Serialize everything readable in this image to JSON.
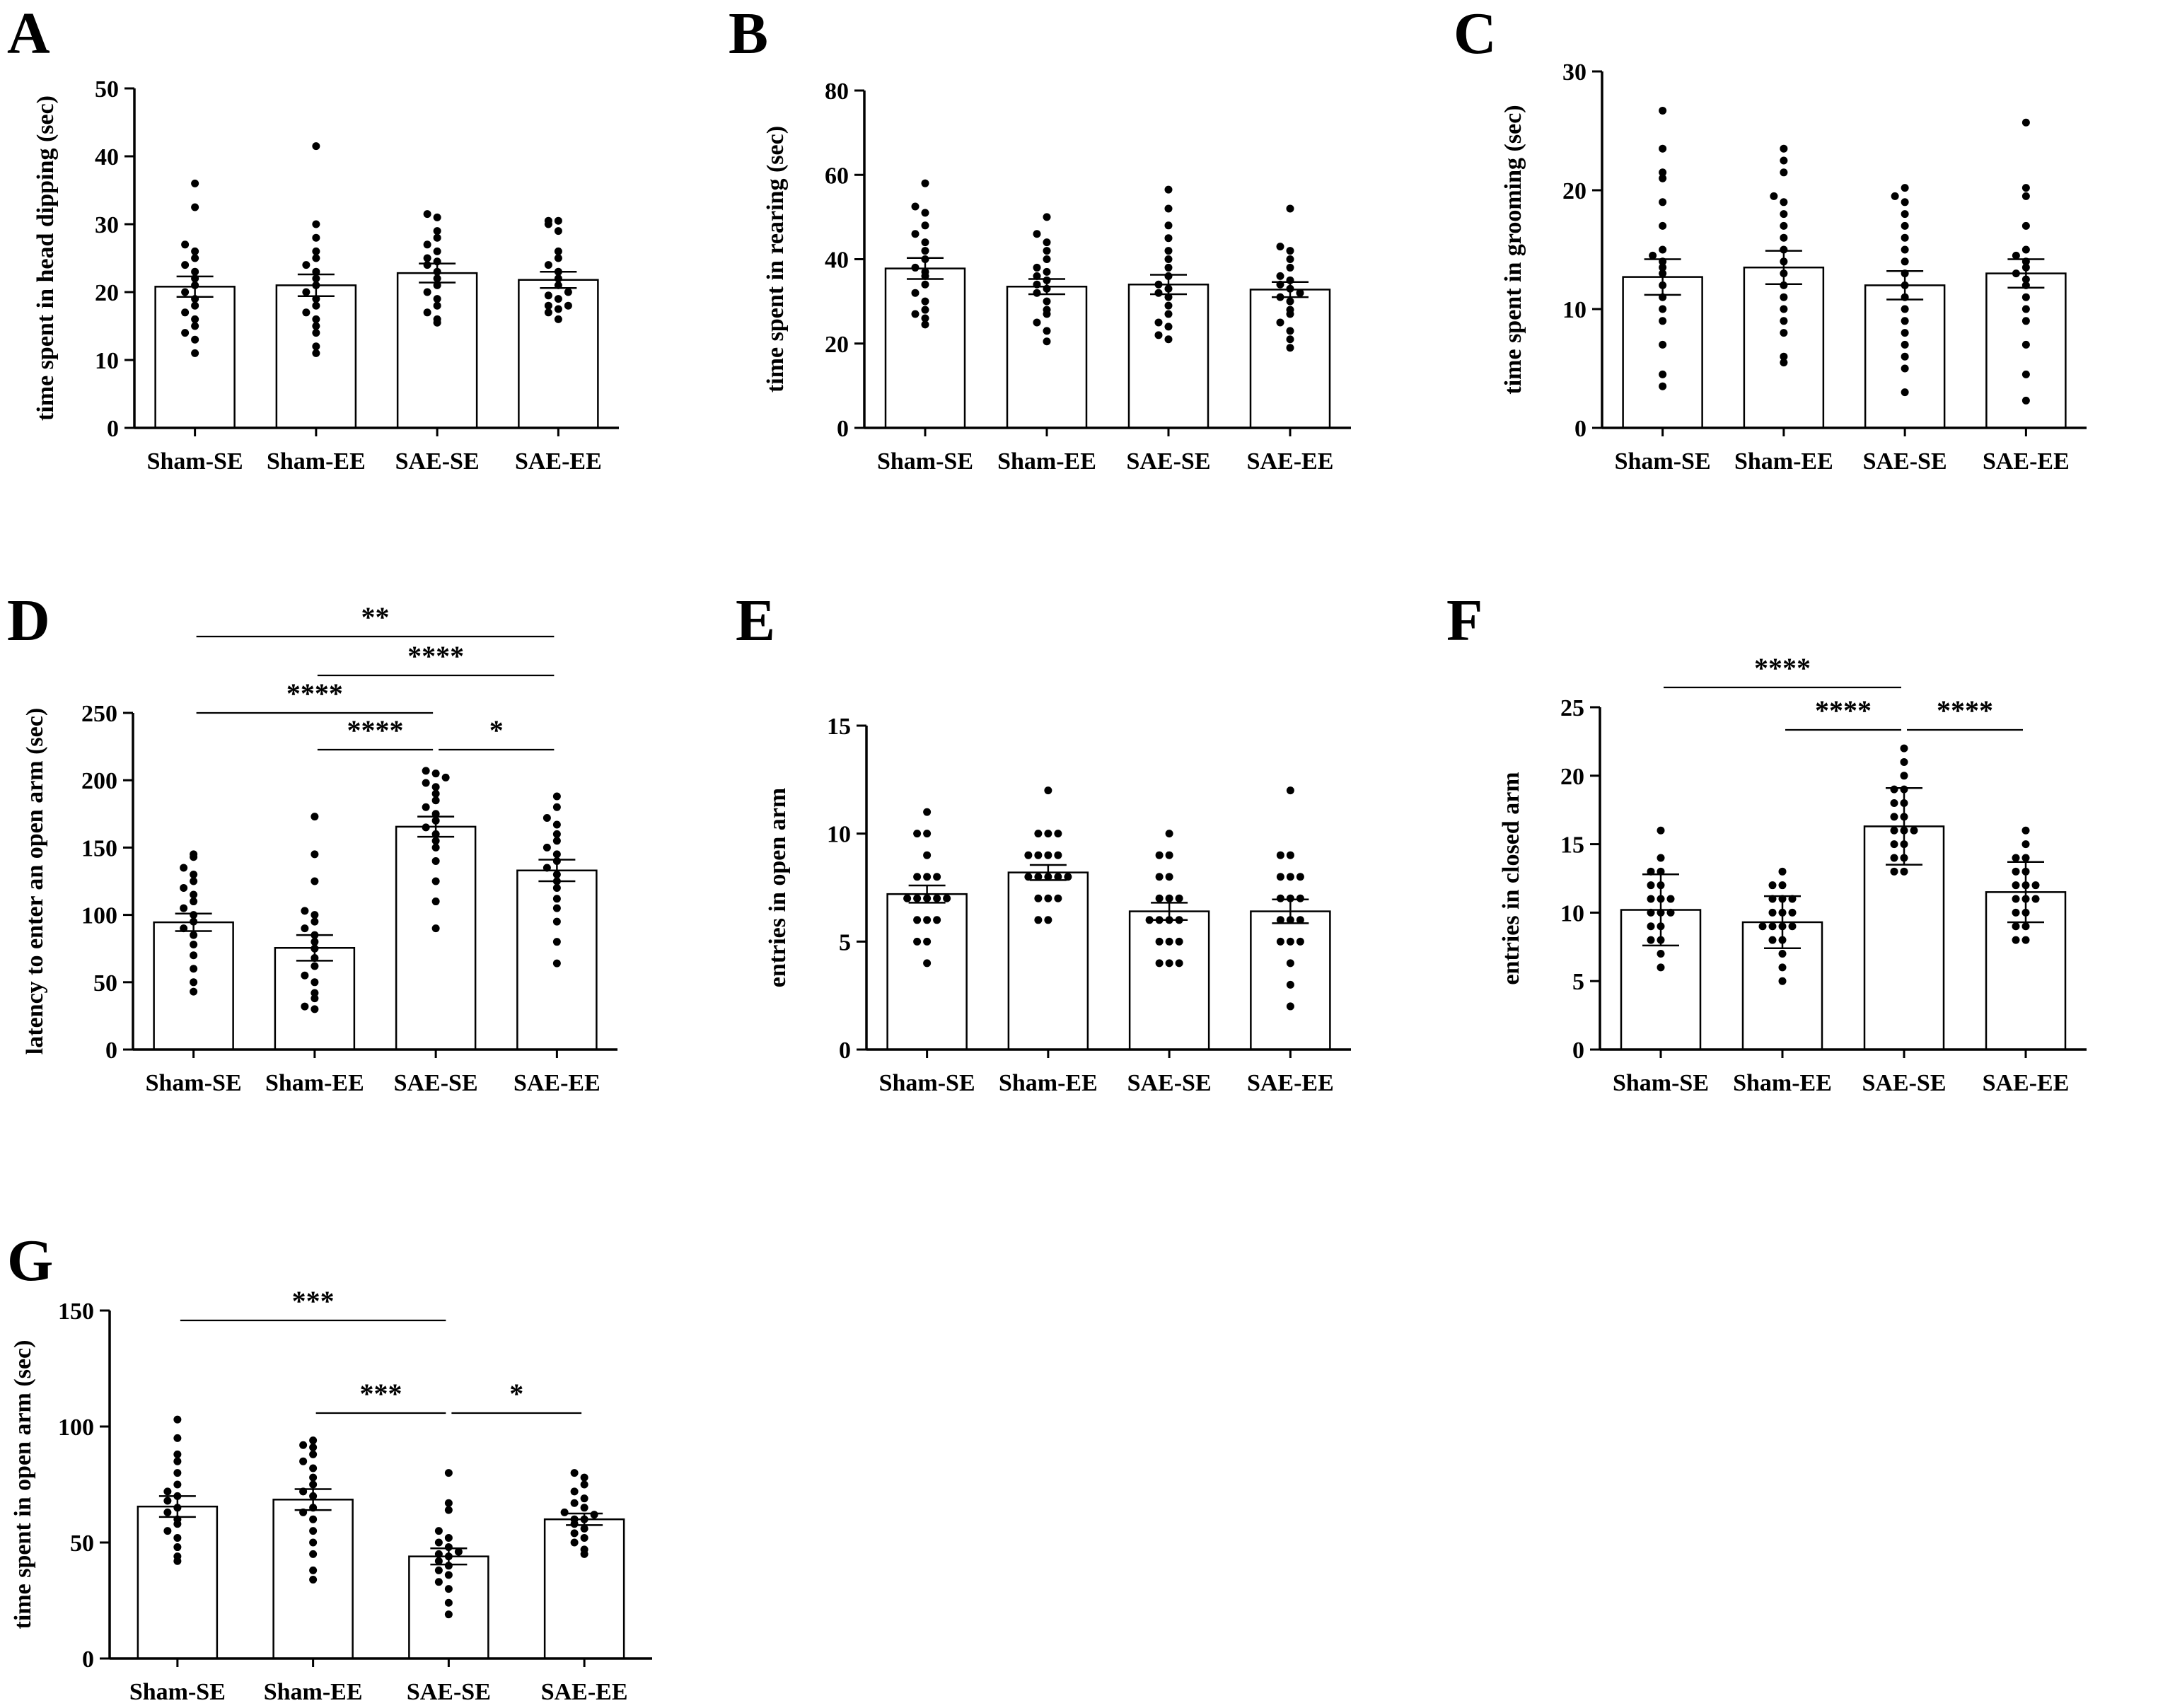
{
  "chart_data": [
    {
      "panel": "A",
      "type": "bar",
      "categories": [
        "Sham-SE",
        "Sham-EE",
        "SAE-SE",
        "SAE-EE"
      ],
      "ylabel": "time spent in head dipping (sec)",
      "ylim": [
        0,
        50
      ],
      "yticks": [
        0,
        10,
        20,
        30,
        40,
        50
      ],
      "values": [
        20.8,
        21.0,
        22.8,
        21.8
      ],
      "sem": [
        1.5,
        1.6,
        1.4,
        1.2
      ],
      "points": [
        [
          11,
          13,
          14,
          15,
          16,
          17,
          18,
          19,
          20,
          21,
          22,
          23,
          24,
          25,
          26,
          27,
          32.5,
          36
        ],
        [
          11,
          12,
          14,
          15,
          16,
          17,
          18,
          19,
          20,
          21,
          22,
          23,
          24,
          25,
          26,
          28,
          30,
          41.5
        ],
        [
          15.5,
          16,
          17,
          18,
          19,
          20,
          21,
          22,
          23,
          24,
          24.5,
          25,
          26,
          27,
          28,
          29,
          31,
          31.5
        ],
        [
          16,
          17,
          17.5,
          18,
          18,
          19,
          19.5,
          20,
          21,
          22,
          23,
          24,
          25,
          26,
          29,
          30,
          30.5,
          30.5
        ]
      ],
      "significance": []
    },
    {
      "panel": "B",
      "type": "bar",
      "categories": [
        "Sham-SE",
        "Sham-EE",
        "SAE-SE",
        "SAE-EE"
      ],
      "ylabel": "time spent in rearing (sec)",
      "ylim": [
        0,
        80
      ],
      "yticks": [
        0,
        20,
        40,
        60,
        80
      ],
      "values": [
        37.8,
        33.5,
        34.0,
        32.8
      ],
      "sem": [
        2.5,
        1.8,
        2.3,
        1.8
      ],
      "points": [
        [
          24.5,
          26,
          27,
          28,
          30,
          32,
          34,
          36,
          37,
          38,
          40,
          42,
          44,
          46,
          48,
          51,
          52.5,
          58
        ],
        [
          20.5,
          23,
          25,
          27,
          28,
          30,
          32,
          33,
          34,
          35,
          36,
          37,
          38,
          40,
          42,
          44,
          46,
          50
        ],
        [
          21,
          22,
          24,
          25,
          27,
          29,
          31,
          32,
          33,
          34,
          36,
          38,
          40,
          42,
          45,
          48,
          52,
          56.5
        ],
        [
          19,
          21,
          23,
          25,
          27,
          28,
          30,
          31,
          32,
          33,
          34,
          35,
          36,
          38,
          40,
          42,
          43,
          52
        ]
      ],
      "significance": []
    },
    {
      "panel": "C",
      "type": "bar",
      "categories": [
        "Sham-SE",
        "Sham-EE",
        "SAE-SE",
        "SAE-EE"
      ],
      "ylabel": "time spent in grooming (sec)",
      "ylim": [
        0,
        30
      ],
      "yticks": [
        0,
        10,
        20,
        30
      ],
      "values": [
        12.7,
        13.5,
        12.0,
        13.0
      ],
      "sem": [
        1.5,
        1.4,
        1.2,
        1.2
      ],
      "points": [
        [
          3.5,
          4.5,
          7,
          9,
          10,
          11,
          12,
          13,
          13.5,
          14,
          14.5,
          15,
          17,
          19,
          21,
          21.5,
          23.5,
          26.7
        ],
        [
          5.5,
          6,
          8,
          9,
          10,
          11,
          12,
          13,
          14,
          15,
          16,
          17,
          18,
          19,
          19.5,
          21.5,
          22.5,
          23.5
        ],
        [
          3,
          5,
          6,
          7,
          8,
          9,
          10,
          11,
          12,
          13,
          14,
          15,
          16,
          17,
          18,
          19,
          19.5,
          20.2
        ],
        [
          2.3,
          4.5,
          7,
          9,
          10,
          11,
          12,
          12.5,
          13,
          13.5,
          14,
          14.5,
          15,
          17,
          19.5,
          20.2,
          25.7
        ]
      ],
      "significance": []
    },
    {
      "panel": "D",
      "type": "bar",
      "categories": [
        "Sham-SE",
        "Sham-EE",
        "SAE-SE",
        "SAE-EE"
      ],
      "ylabel": "latency to enter an open arm (sec)",
      "ylim": [
        0,
        250
      ],
      "yticks": [
        0,
        50,
        100,
        150,
        200,
        250
      ],
      "values": [
        94.5,
        75.5,
        165.5,
        133.0
      ],
      "sem": [
        6.5,
        9.5,
        7.5,
        8.0
      ],
      "points": [
        [
          43,
          50,
          60,
          70,
          78,
          85,
          90,
          95,
          100,
          105,
          110,
          115,
          120,
          125,
          130,
          135,
          143,
          145
        ],
        [
          30,
          32,
          38,
          42,
          50,
          55,
          62,
          68,
          75,
          80,
          85,
          90,
          95,
          100,
          103,
          125,
          145,
          173
        ],
        [
          90,
          110,
          125,
          140,
          150,
          155,
          160,
          165,
          170,
          175,
          180,
          185,
          190,
          195,
          198,
          202,
          205,
          207
        ],
        [
          64,
          80,
          95,
          105,
          112,
          120,
          125,
          130,
          135,
          140,
          145,
          150,
          155,
          160,
          167,
          172,
          180,
          188
        ]
      ],
      "significance": [
        {
          "from": "Sham-SE",
          "to": "SAE-EE",
          "label": "**"
        },
        {
          "from": "Sham-EE",
          "to": "SAE-EE",
          "label": "****"
        },
        {
          "from": "Sham-SE",
          "to": "SAE-SE",
          "label": "****"
        },
        {
          "from": "Sham-EE",
          "to": "SAE-SE",
          "label": "****"
        },
        {
          "from": "SAE-SE",
          "to": "SAE-EE",
          "label": "*"
        }
      ]
    },
    {
      "panel": "E",
      "type": "bar",
      "categories": [
        "Sham-SE",
        "Sham-EE",
        "SAE-SE",
        "SAE-EE"
      ],
      "ylabel": "entries in open arm",
      "ylim": [
        0,
        15
      ],
      "yticks": [
        0,
        5,
        10,
        15
      ],
      "values": [
        7.2,
        8.2,
        6.4,
        6.4
      ],
      "sem": [
        0.4,
        0.35,
        0.4,
        0.55
      ],
      "points": [
        [
          4,
          5,
          5,
          6,
          6,
          6,
          7,
          7,
          7,
          7,
          7,
          8,
          8,
          8,
          9,
          10,
          10,
          11
        ],
        [
          6,
          6,
          7,
          7,
          7,
          8,
          8,
          8,
          8,
          8,
          9,
          9,
          9,
          9,
          10,
          10,
          10,
          12
        ],
        [
          4,
          4,
          4,
          5,
          5,
          5,
          6,
          6,
          6,
          6,
          7,
          7,
          7,
          8,
          8,
          9,
          9,
          10
        ],
        [
          2,
          3,
          4,
          5,
          5,
          5,
          6,
          6,
          6,
          7,
          7,
          7,
          8,
          8,
          8,
          9,
          9,
          12
        ]
      ],
      "significance": []
    },
    {
      "panel": "F",
      "type": "bar",
      "categories": [
        "Sham-SE",
        "Sham-EE",
        "SAE-SE",
        "SAE-EE"
      ],
      "ylabel": "entries in closed arm",
      "ylim": [
        0,
        25
      ],
      "yticks": [
        0,
        5,
        10,
        15,
        20,
        25
      ],
      "values": [
        10.2,
        9.3,
        16.3,
        11.5
      ],
      "sem": [
        2.6,
        1.9,
        2.8,
        2.2
      ],
      "points": [
        [
          6,
          7,
          8,
          8,
          9,
          9,
          10,
          10,
          10,
          11,
          11,
          11,
          12,
          12,
          13,
          13,
          14,
          16
        ],
        [
          5,
          6,
          7,
          8,
          8,
          9,
          9,
          9,
          9,
          10,
          10,
          10,
          11,
          11,
          11,
          12,
          12,
          13
        ],
        [
          13,
          13,
          14,
          14,
          15,
          15,
          16,
          16,
          16,
          17,
          17,
          18,
          18,
          19,
          19,
          20,
          21,
          22
        ],
        [
          8,
          8,
          9,
          9,
          10,
          10,
          11,
          11,
          11,
          12,
          12,
          12,
          13,
          13,
          14,
          14,
          15,
          16
        ]
      ],
      "significance": [
        {
          "from": "Sham-SE",
          "to": "SAE-SE",
          "label": "****"
        },
        {
          "from": "Sham-EE",
          "to": "SAE-SE",
          "label": "****"
        },
        {
          "from": "SAE-SE",
          "to": "SAE-EE",
          "label": "****"
        }
      ]
    },
    {
      "panel": "G",
      "type": "bar",
      "categories": [
        "Sham-SE",
        "Sham-EE",
        "SAE-SE",
        "SAE-EE"
      ],
      "ylabel": "time spent in open arm (sec)",
      "ylim": [
        0,
        150
      ],
      "yticks": [
        0,
        50,
        100,
        150
      ],
      "values": [
        65.5,
        68.5,
        44.0,
        60.0
      ],
      "sem": [
        4.5,
        4.5,
        3.5,
        2.5
      ],
      "points": [
        [
          42,
          44,
          48,
          52,
          55,
          58,
          60,
          63,
          65,
          68,
          70,
          72,
          75,
          80,
          85,
          88,
          95,
          103
        ],
        [
          34,
          38,
          45,
          50,
          55,
          60,
          63,
          65,
          70,
          72,
          75,
          78,
          82,
          85,
          88,
          91,
          92,
          94
        ],
        [
          19,
          24,
          30,
          33,
          36,
          38,
          40,
          42,
          44,
          45,
          46,
          48,
          50,
          52,
          55,
          64,
          67,
          80
        ],
        [
          45,
          47,
          50,
          52,
          54,
          56,
          58,
          60,
          60,
          62,
          63,
          65,
          67,
          69,
          72,
          75,
          78,
          80
        ]
      ],
      "significance": [
        {
          "from": "Sham-SE",
          "to": "SAE-SE",
          "label": "***"
        },
        {
          "from": "Sham-EE",
          "to": "SAE-SE",
          "label": "***"
        },
        {
          "from": "SAE-SE",
          "to": "SAE-EE",
          "label": "*"
        }
      ]
    }
  ]
}
